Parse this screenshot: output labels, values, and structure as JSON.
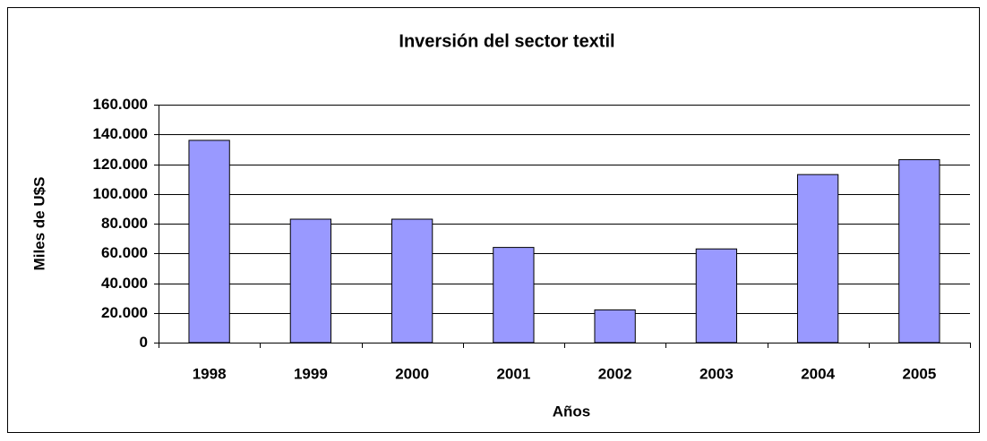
{
  "chart_data": {
    "type": "bar",
    "title": "Inversión del sector textil",
    "x_label": "Años",
    "y_label": "Miles de U$S",
    "categories": [
      "1998",
      "1999",
      "2000",
      "2001",
      "2002",
      "2003",
      "2004",
      "2005"
    ],
    "values": [
      136000,
      83000,
      83000,
      64000,
      22000,
      63000,
      113000,
      123000
    ],
    "color": "#9999ff",
    "ylim": [
      0,
      160000
    ],
    "yticks": [
      0,
      {
        "value": 20000,
        "label": "20.000"
      },
      {
        "value": 40000,
        "label": "40.000"
      },
      {
        "value": 60000,
        "label": "60.000"
      },
      {
        "value": 80000,
        "label": "80.000"
      },
      {
        "value": 100000,
        "label": "100.000"
      },
      {
        "value": 120000,
        "label": "120.000"
      },
      {
        "value": 140000,
        "label": "140.000"
      },
      {
        "value": 160000,
        "label": "160.000"
      }
    ],
    "grid": true
  }
}
